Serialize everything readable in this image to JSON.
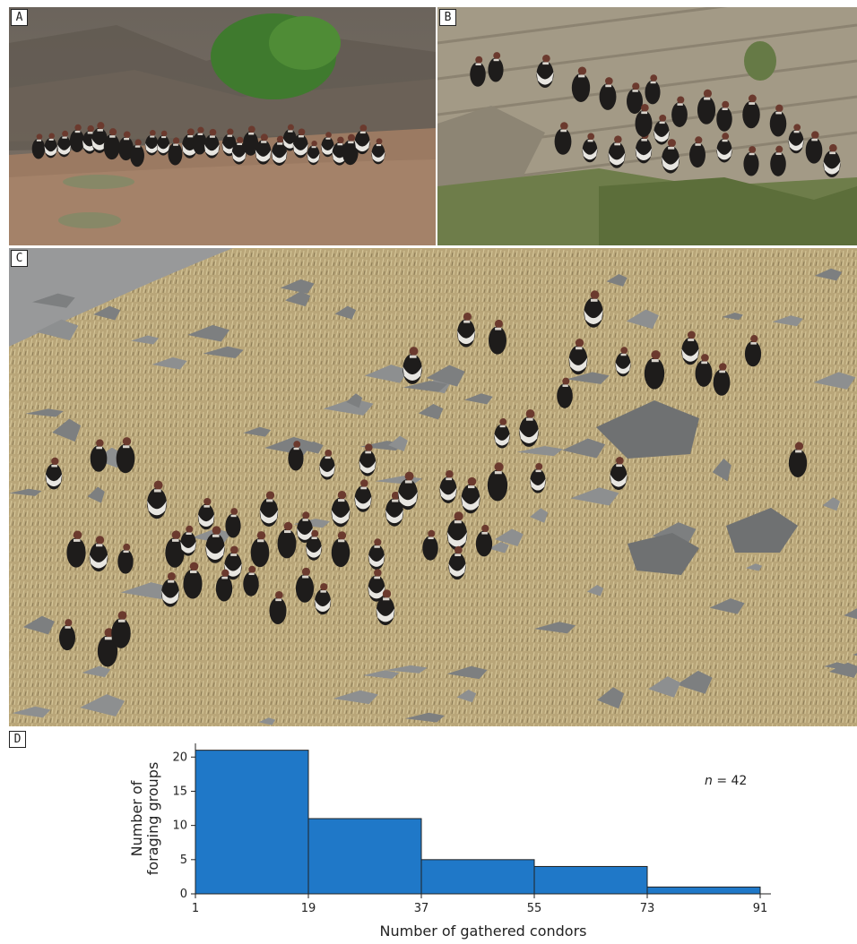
{
  "panels": [
    {
      "label": "A"
    },
    {
      "label": "B"
    },
    {
      "label": "C"
    },
    {
      "label": "D"
    }
  ],
  "chart_data": {
    "type": "bar",
    "subtype": "histogram",
    "bin_edges": [
      1,
      19,
      37,
      55,
      73,
      91
    ],
    "values": [
      21,
      11,
      5,
      4,
      1
    ],
    "xlabel": "Number of gathered condors",
    "ylabel_lines": [
      "Number of",
      "foraging groups"
    ],
    "ylim": [
      0,
      22
    ],
    "yticks": [
      0,
      5,
      10,
      15,
      20
    ],
    "xticks": [
      1,
      19,
      37,
      55,
      73,
      91
    ],
    "annotation": {
      "italic": "n",
      "rest": " = 42"
    },
    "bar_color": "#1f78c8",
    "grid": false
  }
}
